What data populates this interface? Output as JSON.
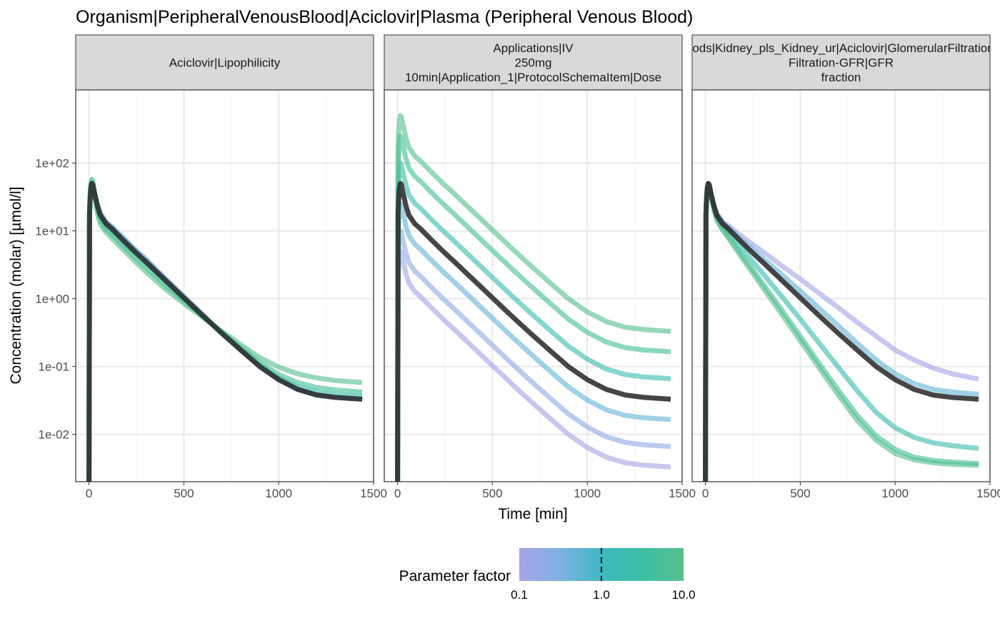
{
  "chart_data": {
    "type": "line",
    "title": "Organism|PeripheralVenousBlood|Aciclovir|Plasma (Peripheral Venous Blood)",
    "xlabel": "Time [min]",
    "ylabel": "Concentration (molar) [µmol/l]",
    "y_scale": "log10",
    "xlim": [
      -70,
      1500
    ],
    "ylim": [
      0.002,
      1200
    ],
    "x_ticks": [
      0,
      500,
      1000,
      1500
    ],
    "x_tick_labels": [
      "0",
      "500",
      "1000",
      "1500"
    ],
    "y_ticks": [
      0.01,
      0.1,
      1,
      10,
      100
    ],
    "y_tick_labels": [
      "1e-02",
      "1e-01",
      "1e+00",
      "1e+01",
      "1e+02"
    ],
    "grid": true,
    "legend": {
      "title": "Parameter factor",
      "type": "colorbar",
      "position": "bottom",
      "range": [
        0.1,
        10.0
      ],
      "scale": "log",
      "colors": [
        "#a7a4e6",
        "#7eb1e2",
        "#3fb9c4",
        "#3dbfa3",
        "#57c08c"
      ],
      "reference_mark": 1.0,
      "tick_labels": [
        "0.1",
        "1.0",
        "10.0"
      ]
    },
    "reference_series_color": "#2b2b2b",
    "time": [
      0,
      3,
      6,
      10,
      15,
      20,
      30,
      45,
      60,
      90,
      120,
      180,
      240,
      300,
      400,
      500,
      600,
      700,
      800,
      900,
      1000,
      1100,
      1200,
      1300,
      1440
    ],
    "panels": [
      {
        "label_lines": [
          "Aciclovir|Lipophilicity"
        ],
        "series": [
          {
            "factor": 0.1,
            "values": [
              0.002,
              18,
              30,
              43,
              50,
              48,
              36,
              24,
              18,
              13.5,
              11.5,
              7.9,
              5.4,
              3.8,
              2.0,
              1.08,
              0.58,
              0.31,
              0.175,
              0.1,
              0.064,
              0.046,
              0.038,
              0.035,
              0.033
            ]
          },
          {
            "factor": 0.5,
            "values": [
              0.002,
              18,
              30,
              43,
              50,
              48,
              36,
              24,
              18,
              13.5,
              11.5,
              7.9,
              5.4,
              3.8,
              2.0,
              1.08,
              0.58,
              0.31,
              0.175,
              0.1,
              0.064,
              0.046,
              0.038,
              0.035,
              0.033
            ]
          },
          {
            "factor": 2.0,
            "values": [
              0.002,
              18,
              31,
              45,
              52,
              50,
              35,
              22,
              16,
              11.8,
              10.0,
              6.8,
              4.7,
              3.3,
              1.8,
              0.99,
              0.56,
              0.31,
              0.18,
              0.106,
              0.068,
              0.05,
              0.042,
              0.038,
              0.036
            ]
          },
          {
            "factor": 5.0,
            "values": [
              0.002,
              18,
              32,
              47,
              55,
              52,
              34,
              20,
              14,
              10.5,
              8.8,
              6.0,
              4.1,
              2.9,
              1.6,
              0.92,
              0.55,
              0.32,
              0.19,
              0.115,
              0.076,
              0.058,
              0.049,
              0.045,
              0.042
            ]
          },
          {
            "factor": 10.0,
            "values": [
              0.002,
              18,
              33,
              50,
              58,
              55,
              33,
              18,
              12.5,
              9.5,
              7.8,
              5.3,
              3.6,
              2.5,
              1.4,
              0.85,
              0.53,
              0.33,
              0.21,
              0.135,
              0.098,
              0.078,
              0.068,
              0.062,
              0.058
            ]
          },
          {
            "factor": 1.0,
            "reference": true,
            "values": [
              0.002,
              18,
              30,
              43,
              50,
              48,
              35,
              23,
              17,
              12.8,
              10.8,
              7.3,
              5.0,
              3.5,
              1.9,
              1.03,
              0.56,
              0.31,
              0.175,
              0.1,
              0.064,
              0.046,
              0.038,
              0.035,
              0.033
            ]
          }
        ]
      },
      {
        "label_lines": [
          "Applications|IV",
          "250mg",
          "10min|Application_1|ProtocolSchemaItem|Dose"
        ],
        "series": [
          {
            "factor": 0.1,
            "values": [
              0.002,
              1.8,
              3.0,
              4.3,
              5.0,
              4.8,
              3.5,
              2.3,
              1.7,
              1.28,
              1.08,
              0.73,
              0.5,
              0.35,
              0.19,
              0.103,
              0.056,
              0.031,
              0.0175,
              0.01,
              0.0064,
              0.0046,
              0.0038,
              0.0035,
              0.0033
            ]
          },
          {
            "factor": 0.2,
            "values": [
              0.002,
              3.6,
              6.0,
              8.6,
              10,
              9.6,
              7.0,
              4.6,
              3.4,
              2.56,
              2.16,
              1.46,
              1.0,
              0.7,
              0.38,
              0.206,
              0.112,
              0.062,
              0.035,
              0.02,
              0.0128,
              0.0092,
              0.0076,
              0.007,
              0.0066
            ]
          },
          {
            "factor": 0.5,
            "values": [
              0.002,
              9,
              15,
              21.5,
              25,
              24,
              17.5,
              11.5,
              8.5,
              6.4,
              5.4,
              3.65,
              2.5,
              1.75,
              0.95,
              0.515,
              0.28,
              0.155,
              0.0875,
              0.05,
              0.032,
              0.023,
              0.019,
              0.0175,
              0.0165
            ]
          },
          {
            "factor": 1.0,
            "reference": true,
            "values": [
              0.002,
              18,
              30,
              43,
              50,
              48,
              35,
              23,
              17,
              12.8,
              10.8,
              7.3,
              5.0,
              3.5,
              1.9,
              1.03,
              0.56,
              0.31,
              0.175,
              0.1,
              0.064,
              0.046,
              0.038,
              0.035,
              0.033
            ]
          },
          {
            "factor": 2.0,
            "values": [
              0.002,
              36,
              60,
              86,
              100,
              96,
              70,
              46,
              34,
              25.6,
              21.6,
              14.6,
              10,
              7.0,
              3.8,
              2.06,
              1.12,
              0.62,
              0.35,
              0.2,
              0.128,
              0.092,
              0.076,
              0.07,
              0.066
            ]
          },
          {
            "factor": 5.0,
            "values": [
              0.002,
              90,
              150,
              215,
              250,
              240,
              175,
              115,
              85,
              64,
              54,
              36.5,
              25,
              17.5,
              9.5,
              5.15,
              2.8,
              1.55,
              0.875,
              0.5,
              0.32,
              0.23,
              0.19,
              0.175,
              0.165
            ]
          },
          {
            "factor": 10.0,
            "values": [
              0.002,
              180,
              300,
              430,
              500,
              480,
              350,
              230,
              170,
              128,
              108,
              73,
              50,
              35,
              19,
              10.3,
              5.6,
              3.1,
              1.75,
              1.0,
              0.64,
              0.46,
              0.38,
              0.35,
              0.33
            ]
          }
        ]
      },
      {
        "label_lines": [
          "Neighborhoods|Kidney_pls_Kidney_ur|Aciclovir|GlomerularFiltration-GFR|GFR",
          "Filtration-GFR|GFR",
          "fraction"
        ],
        "series": [
          {
            "factor": 0.1,
            "values": [
              0.002,
              18,
              30,
              43,
              50,
              48,
              36,
              24,
              18,
              13.8,
              12.0,
              8.8,
              6.6,
              5.0,
              3.1,
              1.95,
              1.2,
              0.74,
              0.45,
              0.28,
              0.175,
              0.125,
              0.095,
              0.078,
              0.065
            ]
          },
          {
            "factor": 0.5,
            "values": [
              0.002,
              18,
              30,
              43,
              50,
              48,
              35.5,
              23.5,
              17.5,
              13.2,
              11.3,
              7.9,
              5.6,
              4.0,
              2.3,
              1.3,
              0.72,
              0.4,
              0.22,
              0.125,
              0.078,
              0.056,
              0.046,
              0.042,
              0.039
            ]
          },
          {
            "factor": 1.0,
            "reference": true,
            "values": [
              0.002,
              18,
              30,
              43,
              50,
              48,
              35,
              23,
              17,
              12.8,
              10.8,
              7.3,
              5.0,
              3.5,
              1.9,
              1.03,
              0.56,
              0.31,
              0.175,
              0.1,
              0.064,
              0.046,
              0.038,
              0.035,
              0.033
            ]
          },
          {
            "factor": 2.0,
            "values": [
              0.002,
              18,
              30,
              43,
              50,
              47.5,
              34,
              22,
              16,
              11.8,
              9.6,
              6.0,
              3.8,
              2.4,
              1.1,
              0.5,
              0.22,
              0.098,
              0.044,
              0.021,
              0.0125,
              0.009,
              0.0075,
              0.0068,
              0.0062
            ]
          },
          {
            "factor": 5.0,
            "values": [
              0.002,
              18,
              30,
              43,
              50,
              47,
              33,
              21,
              15,
              10.8,
              8.4,
              4.9,
              2.9,
              1.7,
              0.7,
              0.28,
              0.11,
              0.045,
              0.019,
              0.0095,
              0.006,
              0.0046,
              0.0041,
              0.0039,
              0.0037
            ]
          },
          {
            "factor": 10.0,
            "values": [
              0.002,
              18,
              30,
              43,
              50,
              47,
              32.5,
              20.5,
              14.5,
              10.3,
              7.9,
              4.5,
              2.6,
              1.5,
              0.6,
              0.24,
              0.095,
              0.038,
              0.016,
              0.0082,
              0.0052,
              0.0042,
              0.0038,
              0.0036,
              0.0035
            ]
          }
        ]
      }
    ]
  }
}
